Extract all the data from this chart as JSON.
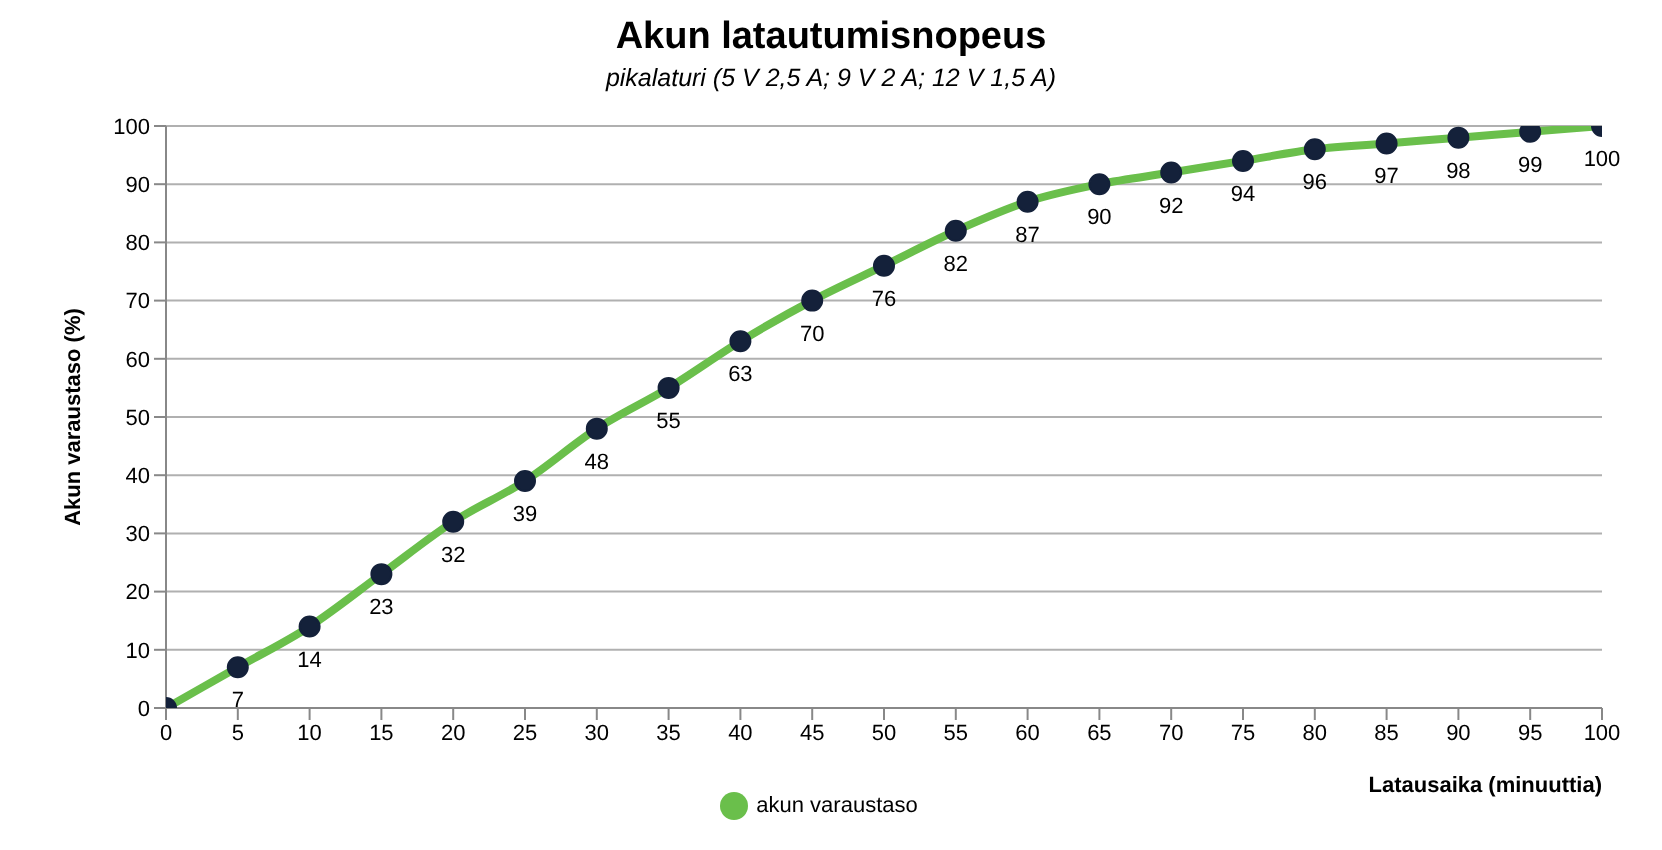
{
  "chart_data": {
    "type": "line",
    "title": "Akun latautumisnopeus",
    "subtitle": "pikalaturi (5 V 2,5 A; 9 V 2 A; 12 V 1,5 A)",
    "xlabel": "Latausaika (minuuttia)",
    "ylabel": "Akun varaustaso (%)",
    "x": [
      0,
      5,
      10,
      15,
      20,
      25,
      30,
      35,
      40,
      45,
      50,
      55,
      60,
      65,
      70,
      75,
      80,
      85,
      90,
      95,
      100
    ],
    "series": [
      {
        "name": "akun varaustaso",
        "color": "#6abf4b",
        "values": [
          0,
          7,
          14,
          23,
          32,
          39,
          48,
          55,
          63,
          70,
          76,
          82,
          87,
          90,
          92,
          94,
          96,
          97,
          98,
          99,
          100
        ],
        "value_labels": [
          null,
          "7",
          "14",
          "23",
          "32",
          "39",
          "48",
          "55",
          "63",
          "70",
          "76",
          "82",
          "87",
          "90",
          "92",
          "94",
          "96",
          "97",
          "98",
          "99",
          "100"
        ]
      }
    ],
    "xlim": [
      0,
      100
    ],
    "xticks": [
      0,
      5,
      10,
      15,
      20,
      25,
      30,
      35,
      40,
      45,
      50,
      55,
      60,
      65,
      70,
      75,
      80,
      85,
      90,
      95,
      100
    ],
    "ylim": [
      0,
      100
    ],
    "yticks": [
      0,
      10,
      20,
      30,
      40,
      50,
      60,
      70,
      80,
      90,
      100
    ],
    "grid": "y",
    "legend": "bottom",
    "marker": "circle",
    "line_style": "solid"
  }
}
